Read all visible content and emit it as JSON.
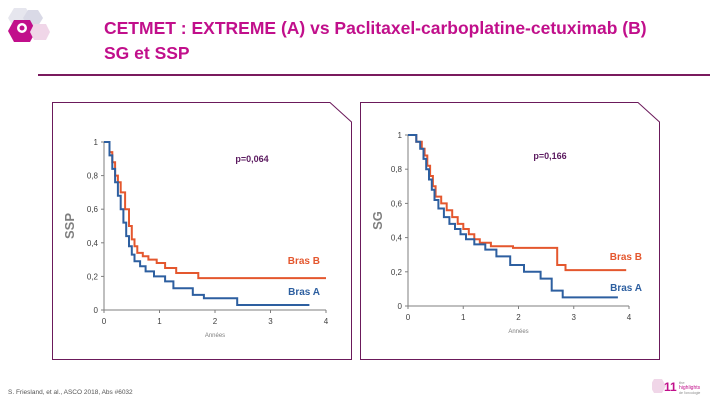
{
  "title_line1": "CETMET : EXTREME (A) vs Paclitaxel-carboplatine-cetuximab (B)",
  "title_line2": "SG et SSP",
  "footer_citation": "S. Friesland, et al., ASCO 2018, Abs #6032",
  "colors": {
    "title": "#c10f8b",
    "rule": "#7a1a5e",
    "bras_a": "#2d5fa0",
    "bras_b": "#e4572e",
    "pvalue": "#5b1a5f",
    "frame": "#6b1a5b"
  },
  "chart_data": [
    {
      "type": "line",
      "step": true,
      "ylabel": "SSP",
      "xlabel": "Années",
      "xlim": [
        0,
        4
      ],
      "ylim": [
        0,
        1
      ],
      "x_ticks": [
        "0",
        "1",
        "2",
        "3",
        "4"
      ],
      "y_ticks": [
        "0",
        "0,2",
        "0,4",
        "0,6",
        "0,8",
        "1"
      ],
      "annotation": "p=0,064",
      "series": [
        {
          "name": "Bras B",
          "color": "#e4572e",
          "x": [
            0,
            0.1,
            0.15,
            0.2,
            0.25,
            0.3,
            0.38,
            0.45,
            0.5,
            0.55,
            0.6,
            0.7,
            0.8,
            0.95,
            1.1,
            1.3,
            1.7,
            4.0
          ],
          "y": [
            1,
            0.94,
            0.88,
            0.8,
            0.76,
            0.7,
            0.6,
            0.5,
            0.42,
            0.38,
            0.34,
            0.32,
            0.3,
            0.28,
            0.25,
            0.22,
            0.19,
            0.19
          ]
        },
        {
          "name": "Bras A",
          "color": "#2d5fa0",
          "x": [
            0,
            0.1,
            0.15,
            0.2,
            0.25,
            0.3,
            0.35,
            0.4,
            0.45,
            0.5,
            0.55,
            0.65,
            0.75,
            0.9,
            1.1,
            1.25,
            1.6,
            1.8,
            2.4,
            3.7
          ],
          "y": [
            1,
            0.92,
            0.84,
            0.76,
            0.68,
            0.6,
            0.52,
            0.44,
            0.38,
            0.33,
            0.29,
            0.26,
            0.23,
            0.2,
            0.17,
            0.13,
            0.09,
            0.07,
            0.03,
            0.03
          ]
        }
      ]
    },
    {
      "type": "line",
      "step": true,
      "ylabel": "SG",
      "xlabel": "Années",
      "xlim": [
        0,
        4
      ],
      "ylim": [
        0,
        1
      ],
      "x_ticks": [
        "0",
        "1",
        "2",
        "3",
        "4"
      ],
      "y_ticks": [
        "0",
        "0,2",
        "0,4",
        "0,6",
        "0,8",
        "1"
      ],
      "annotation": "p=0,166",
      "series": [
        {
          "name": "Bras B",
          "color": "#e4572e",
          "x": [
            0,
            0.15,
            0.25,
            0.3,
            0.35,
            0.4,
            0.45,
            0.5,
            0.6,
            0.7,
            0.8,
            0.9,
            1.0,
            1.1,
            1.2,
            1.3,
            1.5,
            1.9,
            2.7,
            2.85,
            3.95
          ],
          "y": [
            1,
            0.96,
            0.92,
            0.88,
            0.82,
            0.76,
            0.7,
            0.64,
            0.6,
            0.56,
            0.52,
            0.48,
            0.45,
            0.42,
            0.39,
            0.37,
            0.35,
            0.34,
            0.24,
            0.21,
            0.21
          ]
        },
        {
          "name": "Bras A",
          "color": "#2d5fa0",
          "x": [
            0,
            0.15,
            0.22,
            0.28,
            0.33,
            0.38,
            0.43,
            0.48,
            0.55,
            0.65,
            0.75,
            0.85,
            0.95,
            1.05,
            1.2,
            1.4,
            1.6,
            1.85,
            2.1,
            2.4,
            2.6,
            2.8,
            3.8
          ],
          "y": [
            1,
            0.96,
            0.92,
            0.86,
            0.8,
            0.74,
            0.68,
            0.62,
            0.57,
            0.52,
            0.48,
            0.45,
            0.42,
            0.39,
            0.36,
            0.33,
            0.29,
            0.24,
            0.2,
            0.16,
            0.09,
            0.05,
            0.05
          ]
        }
      ]
    }
  ]
}
